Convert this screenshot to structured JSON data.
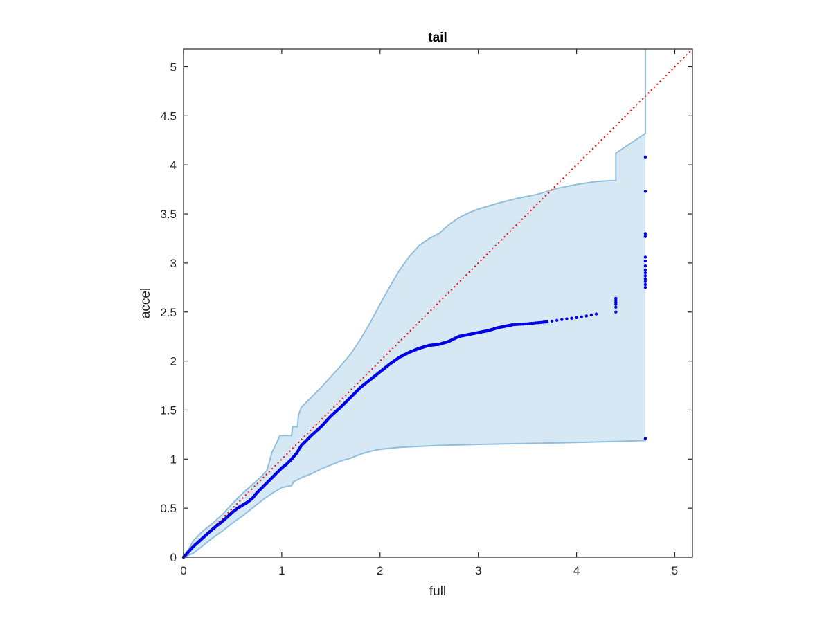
{
  "chart_data": {
    "type": "scatter",
    "title": "tail",
    "xlabel": "full",
    "ylabel": "accel",
    "xlim": [
      0,
      5.18
    ],
    "ylim": [
      0,
      5.18
    ],
    "x_ticks": [
      0,
      1,
      2,
      3,
      4,
      5
    ],
    "x_tick_labels": [
      "0",
      "1",
      "2",
      "3",
      "4",
      "5"
    ],
    "y_ticks": [
      0,
      0.5,
      1,
      1.5,
      2,
      2.5,
      3,
      3.5,
      4,
      4.5,
      5
    ],
    "y_tick_labels": [
      "0",
      "0.5",
      "1",
      "1.5",
      "2",
      "2.5",
      "3",
      "3.5",
      "4",
      "4.5",
      "5"
    ],
    "grid": false,
    "legend": "none",
    "colors": {
      "points": "#0000e6",
      "band_fill": "#d6e8f4",
      "band_edge": "#8fbfdc",
      "reference_line": "#ff0000"
    },
    "reference_line": {
      "style": "dotted",
      "from": [
        0,
        0
      ],
      "to": [
        5.18,
        5.18
      ]
    },
    "confidence_band": {
      "upper": [
        [
          0,
          0
        ],
        [
          0.05,
          0.08
        ],
        [
          0.1,
          0.17
        ],
        [
          0.2,
          0.27
        ],
        [
          0.3,
          0.35
        ],
        [
          0.4,
          0.44
        ],
        [
          0.5,
          0.55
        ],
        [
          0.6,
          0.65
        ],
        [
          0.7,
          0.74
        ],
        [
          0.8,
          0.83
        ],
        [
          0.85,
          0.89
        ],
        [
          0.9,
          1.07
        ],
        [
          0.95,
          1.17
        ],
        [
          0.98,
          1.24
        ],
        [
          1.1,
          1.24
        ],
        [
          1.11,
          1.33
        ],
        [
          1.16,
          1.33
        ],
        [
          1.17,
          1.45
        ],
        [
          1.2,
          1.53
        ],
        [
          1.3,
          1.63
        ],
        [
          1.4,
          1.73
        ],
        [
          1.5,
          1.84
        ],
        [
          1.6,
          1.95
        ],
        [
          1.7,
          2.07
        ],
        [
          1.8,
          2.22
        ],
        [
          1.9,
          2.39
        ],
        [
          2.0,
          2.58
        ],
        [
          2.1,
          2.76
        ],
        [
          2.2,
          2.93
        ],
        [
          2.3,
          3.07
        ],
        [
          2.4,
          3.18
        ],
        [
          2.5,
          3.25
        ],
        [
          2.6,
          3.3
        ],
        [
          2.7,
          3.39
        ],
        [
          2.8,
          3.46
        ],
        [
          2.9,
          3.51
        ],
        [
          3.0,
          3.55
        ],
        [
          3.2,
          3.61
        ],
        [
          3.4,
          3.66
        ],
        [
          3.6,
          3.7
        ],
        [
          3.8,
          3.76
        ],
        [
          4.0,
          3.8
        ],
        [
          4.2,
          3.83
        ],
        [
          4.35,
          3.84
        ],
        [
          4.4,
          3.84
        ],
        [
          4.4,
          4.12
        ],
        [
          4.7,
          4.32
        ],
        [
          4.7,
          5.2
        ]
      ],
      "lower": [
        [
          0,
          0
        ],
        [
          0.1,
          0.04
        ],
        [
          0.2,
          0.12
        ],
        [
          0.3,
          0.2
        ],
        [
          0.4,
          0.27
        ],
        [
          0.5,
          0.35
        ],
        [
          0.6,
          0.42
        ],
        [
          0.7,
          0.5
        ],
        [
          0.8,
          0.58
        ],
        [
          0.9,
          0.65
        ],
        [
          1.0,
          0.71
        ],
        [
          1.1,
          0.73
        ],
        [
          1.12,
          0.77
        ],
        [
          1.2,
          0.81
        ],
        [
          1.3,
          0.85
        ],
        [
          1.4,
          0.9
        ],
        [
          1.5,
          0.94
        ],
        [
          1.6,
          0.98
        ],
        [
          1.7,
          1.01
        ],
        [
          1.8,
          1.05
        ],
        [
          1.9,
          1.08
        ],
        [
          2.0,
          1.1
        ],
        [
          2.2,
          1.12
        ],
        [
          2.4,
          1.13
        ],
        [
          2.6,
          1.14
        ],
        [
          3.0,
          1.15
        ],
        [
          3.5,
          1.16
        ],
        [
          4.0,
          1.17
        ],
        [
          4.4,
          1.18
        ],
        [
          4.7,
          1.19
        ],
        [
          4.7,
          1.2
        ]
      ]
    },
    "points_curve": [
      [
        0,
        0
      ],
      [
        0.1,
        0.11
      ],
      [
        0.2,
        0.2
      ],
      [
        0.3,
        0.29
      ],
      [
        0.4,
        0.37
      ],
      [
        0.5,
        0.46
      ],
      [
        0.55,
        0.5
      ],
      [
        0.6,
        0.53
      ],
      [
        0.65,
        0.56
      ],
      [
        0.7,
        0.6
      ],
      [
        0.75,
        0.66
      ],
      [
        0.8,
        0.71
      ],
      [
        0.85,
        0.76
      ],
      [
        0.9,
        0.81
      ],
      [
        0.95,
        0.86
      ],
      [
        1.0,
        0.91
      ],
      [
        1.05,
        0.95
      ],
      [
        1.1,
        1.0
      ],
      [
        1.15,
        1.06
      ],
      [
        1.2,
        1.14
      ],
      [
        1.3,
        1.24
      ],
      [
        1.4,
        1.33
      ],
      [
        1.5,
        1.44
      ],
      [
        1.6,
        1.53
      ],
      [
        1.7,
        1.63
      ],
      [
        1.8,
        1.73
      ],
      [
        1.9,
        1.81
      ],
      [
        2.0,
        1.89
      ],
      [
        2.1,
        1.97
      ],
      [
        2.2,
        2.04
      ],
      [
        2.3,
        2.09
      ],
      [
        2.4,
        2.13
      ],
      [
        2.5,
        2.16
      ],
      [
        2.6,
        2.17
      ],
      [
        2.7,
        2.2
      ],
      [
        2.8,
        2.25
      ],
      [
        2.9,
        2.27
      ],
      [
        3.0,
        2.29
      ],
      [
        3.1,
        2.31
      ],
      [
        3.2,
        2.34
      ],
      [
        3.35,
        2.37
      ],
      [
        3.5,
        2.38
      ],
      [
        3.7,
        2.4
      ],
      [
        3.9,
        2.43
      ],
      [
        4.05,
        2.45
      ],
      [
        4.2,
        2.48
      ]
    ],
    "points_extra": [
      [
        4.4,
        2.5
      ],
      [
        4.4,
        2.55
      ],
      [
        4.4,
        2.58
      ],
      [
        4.4,
        2.6
      ],
      [
        4.4,
        2.62
      ],
      [
        4.4,
        2.64
      ],
      [
        4.7,
        2.75
      ],
      [
        4.7,
        2.78
      ],
      [
        4.7,
        2.81
      ],
      [
        4.7,
        2.84
      ],
      [
        4.7,
        2.87
      ],
      [
        4.7,
        2.9
      ],
      [
        4.7,
        2.93
      ],
      [
        4.7,
        2.97
      ],
      [
        4.7,
        3.02
      ],
      [
        4.7,
        3.06
      ],
      [
        4.7,
        3.27
      ],
      [
        4.7,
        3.3
      ],
      [
        4.7,
        3.73
      ],
      [
        4.7,
        4.08
      ],
      [
        4.7,
        1.21
      ]
    ]
  }
}
